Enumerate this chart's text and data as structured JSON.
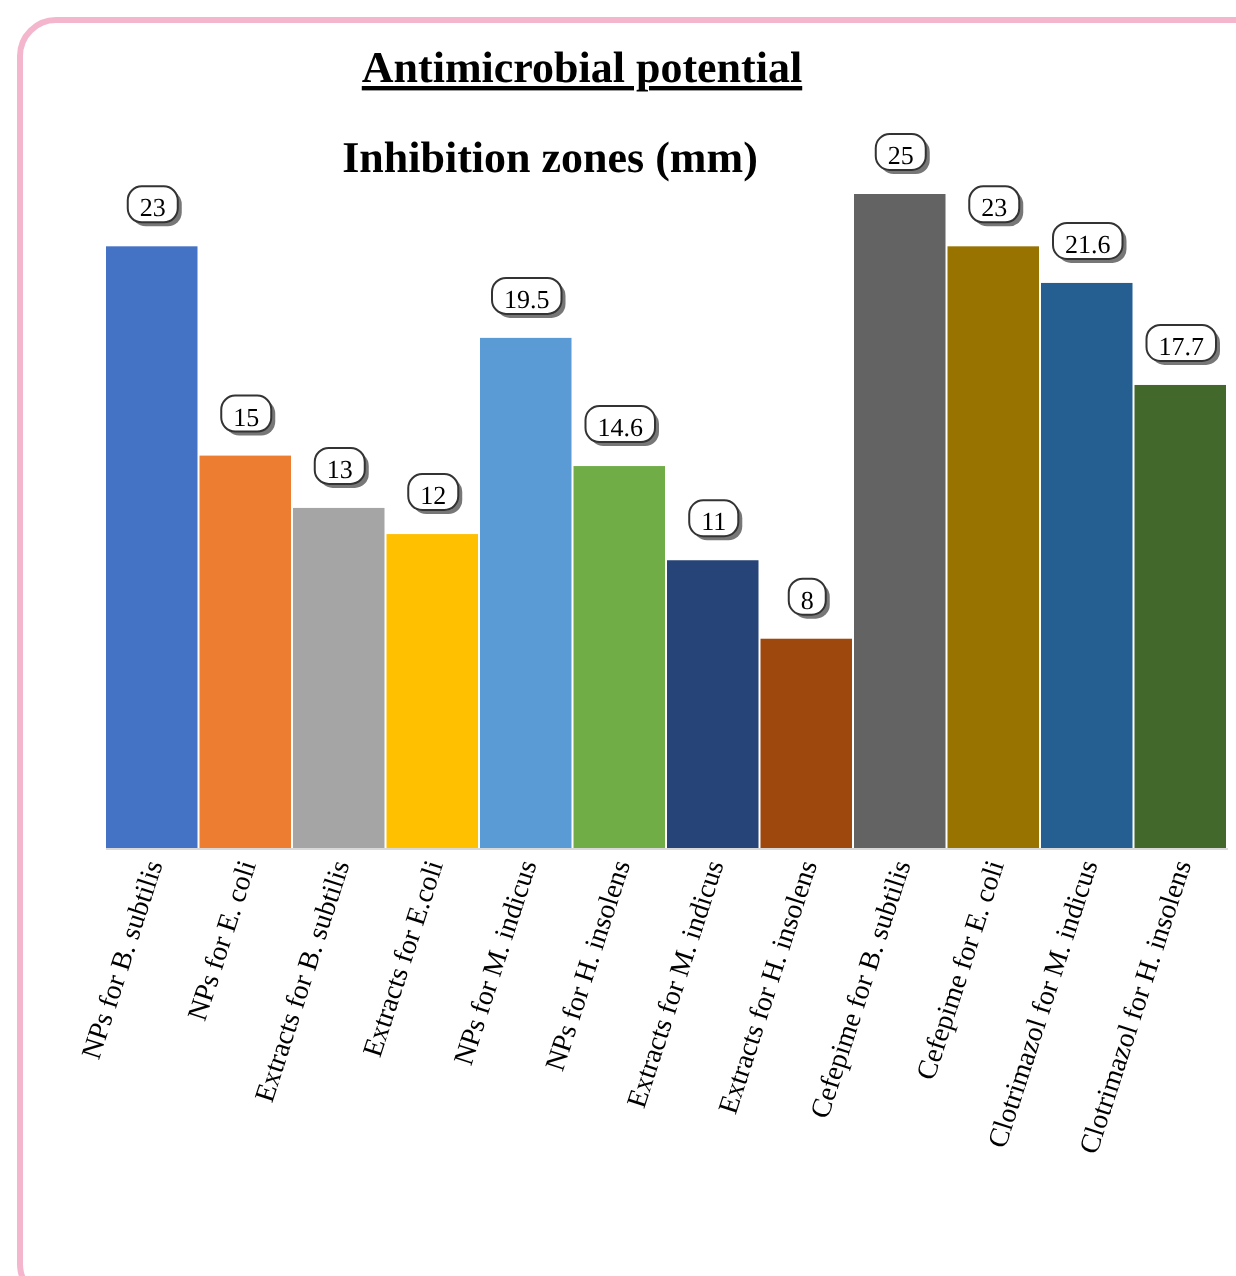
{
  "chart_data": {
    "type": "bar",
    "title": "Antimicrobial potential",
    "subtitle": "Inhibition zones (mm)",
    "data_labels": true,
    "categories": [
      "NPs for B. subtilis",
      "NPs for E. coli",
      "Extracts for B. subtilis",
      "Extracts for E.coli",
      "NPs for M. indicus",
      "NPs for H. insolens",
      "Extracts for M. indicus",
      "Extracts for H. insolens",
      "Cefepime for B. subtilis",
      "Cefepime for E. coli",
      "Clotrimazol for M. indicus",
      "Clotrimazol for H. insolens"
    ],
    "values": [
      23,
      15,
      13,
      12,
      19.5,
      14.6,
      11,
      8,
      25,
      23,
      21.6,
      17.7
    ],
    "colors": [
      "#4472c4",
      "#ed7d31",
      "#a5a5a5",
      "#ffc000",
      "#5b9bd5",
      "#70ad47",
      "#264478",
      "#9e480e",
      "#636363",
      "#997300",
      "#255e91",
      "#43682b"
    ]
  }
}
